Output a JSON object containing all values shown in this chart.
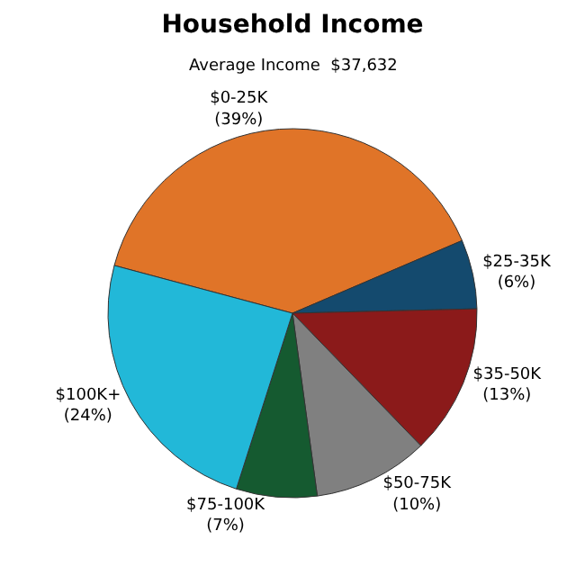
{
  "chart_data": {
    "type": "pie",
    "title": "Household Income",
    "subtitle": "Average Income  $37,632",
    "categories": [
      "$0-25K",
      "$25-35K",
      "$35-50K",
      "$50-75K",
      "$75-100K",
      "$100K+"
    ],
    "values": [
      39,
      6,
      13,
      10,
      7,
      24
    ],
    "value_labels": [
      "(39%)",
      "(6%)",
      "(13%)",
      "(10%)",
      "(7%)",
      "(24%)"
    ],
    "colors": [
      "#e07428",
      "#144a6e",
      "#8b1a1a",
      "#808080",
      "#155a30",
      "#22b8d8"
    ],
    "legend": false
  }
}
